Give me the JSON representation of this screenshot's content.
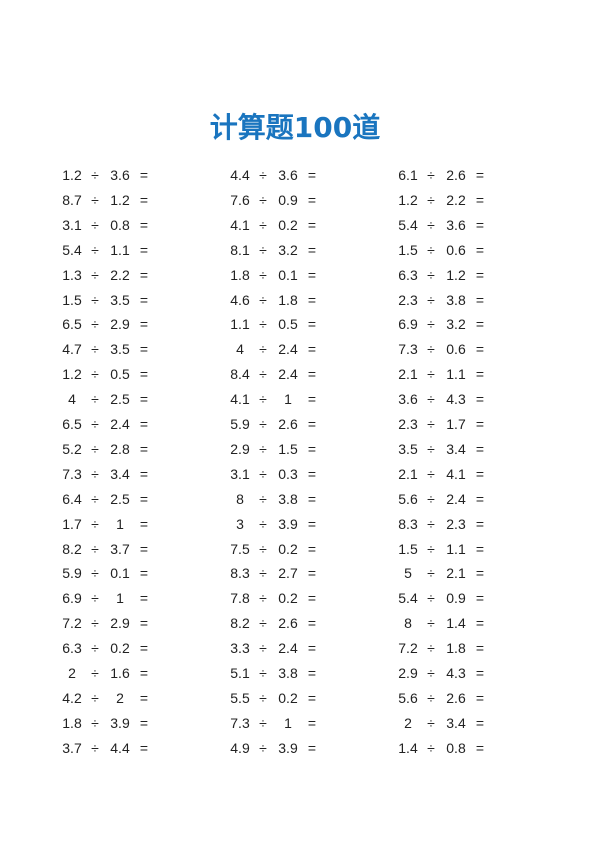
{
  "title": "计算题100道",
  "operator": "÷",
  "equals": "=",
  "columns": [
    [
      [
        "1.2",
        "3.6"
      ],
      [
        "8.7",
        "1.2"
      ],
      [
        "3.1",
        "0.8"
      ],
      [
        "5.4",
        "1.1"
      ],
      [
        "1.3",
        "2.2"
      ],
      [
        "1.5",
        "3.5"
      ],
      [
        "6.5",
        "2.9"
      ],
      [
        "4.7",
        "3.5"
      ],
      [
        "1.2",
        "0.5"
      ],
      [
        "4",
        "2.5"
      ],
      [
        "6.5",
        "2.4"
      ],
      [
        "5.2",
        "2.8"
      ],
      [
        "7.3",
        "3.4"
      ],
      [
        "6.4",
        "2.5"
      ],
      [
        "1.7",
        "1"
      ],
      [
        "8.2",
        "3.7"
      ],
      [
        "5.9",
        "0.1"
      ],
      [
        "6.9",
        "1"
      ],
      [
        "7.2",
        "2.9"
      ],
      [
        "6.3",
        "0.2"
      ],
      [
        "2",
        "1.6"
      ],
      [
        "4.2",
        "2"
      ],
      [
        "1.8",
        "3.9"
      ],
      [
        "3.7",
        "4.4"
      ]
    ],
    [
      [
        "4.4",
        "3.6"
      ],
      [
        "7.6",
        "0.9"
      ],
      [
        "4.1",
        "0.2"
      ],
      [
        "8.1",
        "3.2"
      ],
      [
        "1.8",
        "0.1"
      ],
      [
        "4.6",
        "1.8"
      ],
      [
        "1.1",
        "0.5"
      ],
      [
        "4",
        "2.4"
      ],
      [
        "8.4",
        "2.4"
      ],
      [
        "4.1",
        "1"
      ],
      [
        "5.9",
        "2.6"
      ],
      [
        "2.9",
        "1.5"
      ],
      [
        "3.1",
        "0.3"
      ],
      [
        "8",
        "3.8"
      ],
      [
        "3",
        "3.9"
      ],
      [
        "7.5",
        "0.2"
      ],
      [
        "8.3",
        "2.7"
      ],
      [
        "7.8",
        "0.2"
      ],
      [
        "8.2",
        "2.6"
      ],
      [
        "3.3",
        "2.4"
      ],
      [
        "5.1",
        "3.8"
      ],
      [
        "5.5",
        "0.2"
      ],
      [
        "7.3",
        "1"
      ],
      [
        "4.9",
        "3.9"
      ]
    ],
    [
      [
        "6.1",
        "2.6"
      ],
      [
        "1.2",
        "2.2"
      ],
      [
        "5.4",
        "3.6"
      ],
      [
        "1.5",
        "0.6"
      ],
      [
        "6.3",
        "1.2"
      ],
      [
        "2.3",
        "3.8"
      ],
      [
        "6.9",
        "3.2"
      ],
      [
        "7.3",
        "0.6"
      ],
      [
        "2.1",
        "1.1"
      ],
      [
        "3.6",
        "4.3"
      ],
      [
        "2.3",
        "1.7"
      ],
      [
        "3.5",
        "3.4"
      ],
      [
        "2.1",
        "4.1"
      ],
      [
        "5.6",
        "2.4"
      ],
      [
        "8.3",
        "2.3"
      ],
      [
        "1.5",
        "1.1"
      ],
      [
        "5",
        "2.1"
      ],
      [
        "5.4",
        "0.9"
      ],
      [
        "8",
        "1.4"
      ],
      [
        "7.2",
        "1.8"
      ],
      [
        "2.9",
        "4.3"
      ],
      [
        "5.6",
        "2.6"
      ],
      [
        "2",
        "3.4"
      ],
      [
        "1.4",
        "0.8"
      ]
    ]
  ]
}
